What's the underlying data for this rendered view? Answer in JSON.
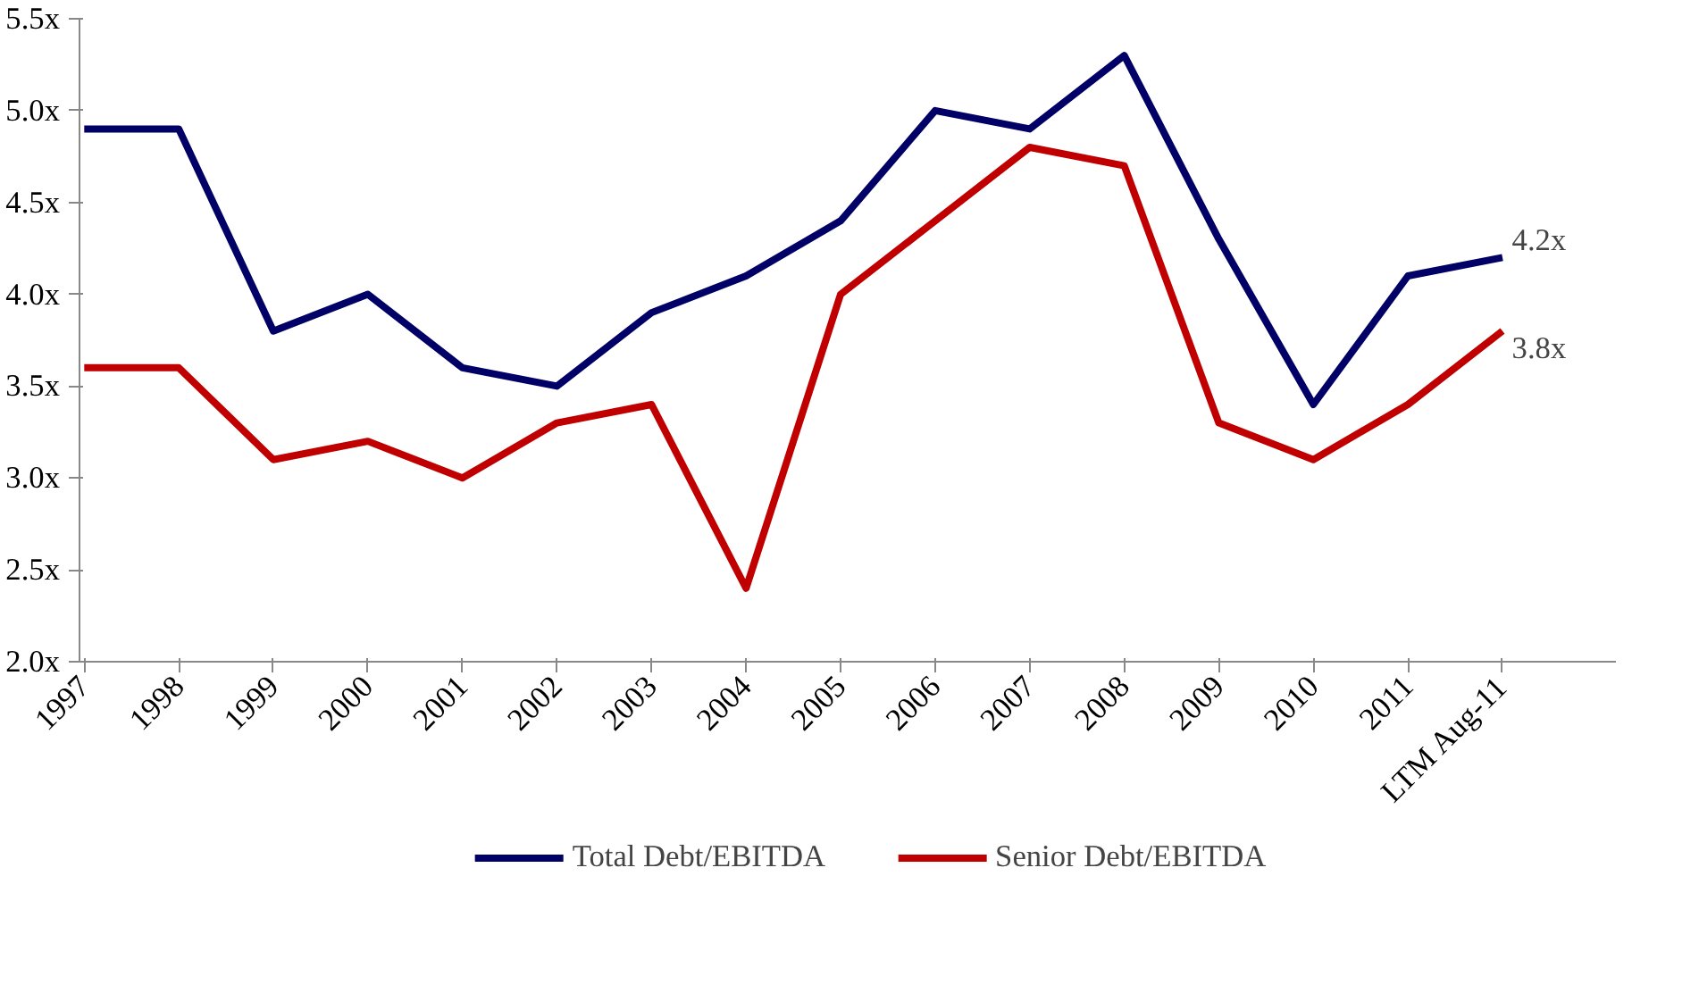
{
  "chart_data": {
    "type": "line",
    "categories": [
      "1997",
      "1998",
      "1999",
      "2000",
      "2001",
      "2002",
      "2003",
      "2004",
      "2005",
      "2006",
      "2007",
      "2008",
      "2009",
      "2010",
      "2011",
      "LTM Aug-11"
    ],
    "series": [
      {
        "name": "Total Debt/EBITDA",
        "color": "#000066",
        "values": [
          4.9,
          4.9,
          3.8,
          4.0,
          3.6,
          3.5,
          3.9,
          4.1,
          4.4,
          5.0,
          4.9,
          5.3,
          4.3,
          3.4,
          4.1,
          4.2
        ]
      },
      {
        "name": "Senior Debt/EBITDA",
        "color": "#c00000",
        "values": [
          3.6,
          3.6,
          3.1,
          3.2,
          3.0,
          3.3,
          3.4,
          2.4,
          4.0,
          4.4,
          4.8,
          4.7,
          3.3,
          3.1,
          3.4,
          3.8
        ]
      }
    ],
    "ylim": [
      2.0,
      5.5
    ],
    "yticks": [
      {
        "value": 2.0,
        "label": "2.0x"
      },
      {
        "value": 2.5,
        "label": "2.5x"
      },
      {
        "value": 3.0,
        "label": "3.0x"
      },
      {
        "value": 3.5,
        "label": "3.5x"
      },
      {
        "value": 4.0,
        "label": "4.0x"
      },
      {
        "value": 4.5,
        "label": "4.5x"
      },
      {
        "value": 5.0,
        "label": "5.0x"
      },
      {
        "value": 5.5,
        "label": "5.5x"
      }
    ],
    "annotations": [
      {
        "text": "4.2x",
        "x": "LTM Aug-11",
        "y": 4.2
      },
      {
        "text": "3.8x",
        "x": "LTM Aug-11",
        "y": 3.8
      }
    ],
    "grid": false,
    "legend": "bottom",
    "marker": "none",
    "line_style": "solid"
  }
}
